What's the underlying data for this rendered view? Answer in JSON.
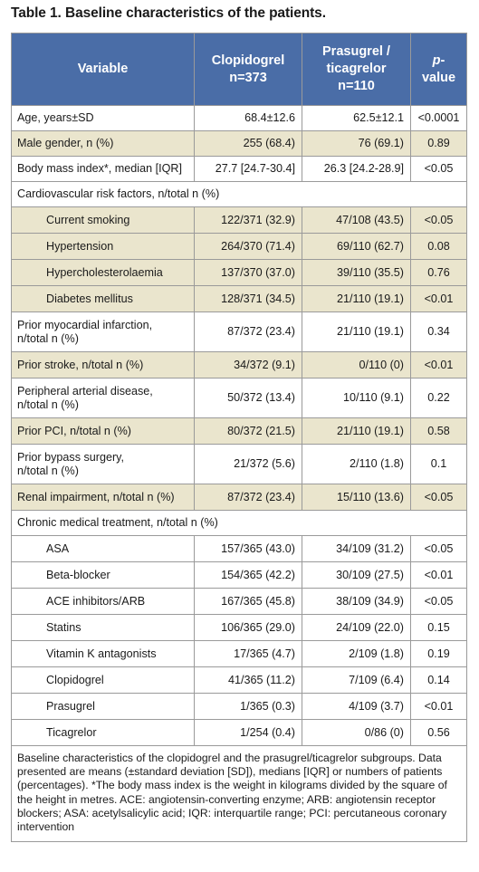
{
  "title": "Table 1. Baseline characteristics of the patients.",
  "header": {
    "variable": "Variable",
    "clopidogrel": "Clopidogrel",
    "clopidogrel_n": "n=373",
    "pras_line1": "Prasugrel /",
    "pras_line2": "ticagrelor",
    "pras_n": "n=110",
    "p_italic": "p",
    "p_rest": "-value"
  },
  "rows": [
    {
      "label": "Age, years±SD",
      "clop": "68.4±12.6",
      "pras": "62.5±12.1",
      "p": "<0.0001"
    },
    {
      "label": "Male gender, n (%)",
      "clop": "255 (68.4)",
      "pras": "76 (69.1)",
      "p": "0.89"
    },
    {
      "label": "Body mass index*, median [IQR]",
      "clop": "27.7 [24.7-30.4]",
      "pras": "26.3 [24.2-28.9]",
      "p": "<0.05"
    },
    {
      "label": "Cardiovascular risk factors, n/total n (%)"
    },
    {
      "label": "Current smoking",
      "clop": "122/371 (32.9)",
      "pras": "47/108 (43.5)",
      "p": "<0.05"
    },
    {
      "label": "Hypertension",
      "clop": "264/370 (71.4)",
      "pras": "69/110 (62.7)",
      "p": "0.08"
    },
    {
      "label": "Hypercholesterolaemia",
      "clop": "137/370 (37.0)",
      "pras": "39/110 (35.5)",
      "p": "0.76"
    },
    {
      "label": "Diabetes mellitus",
      "clop": "128/371 (34.5)",
      "pras": "21/110 (19.1)",
      "p": "<0.01"
    },
    {
      "label": "Prior myocardial infarction,",
      "label2": "n/total n (%)",
      "clop": "87/372 (23.4)",
      "pras": "21/110 (19.1)",
      "p": "0.34"
    },
    {
      "label": "Prior stroke, n/total n (%)",
      "clop": "34/372 (9.1)",
      "pras": "0/110 (0)",
      "p": "<0.01"
    },
    {
      "label": "Peripheral arterial disease,",
      "label2": "n/total n (%)",
      "clop": "50/372 (13.4)",
      "pras": "10/110 (9.1)",
      "p": "0.22"
    },
    {
      "label": "Prior PCI, n/total n (%)",
      "clop": "80/372 (21.5)",
      "pras": "21/110 (19.1)",
      "p": "0.58"
    },
    {
      "label": "Prior bypass surgery,",
      "label2": "n/total n (%)",
      "clop": "21/372 (5.6)",
      "pras": "2/110 (1.8)",
      "p": "0.1"
    },
    {
      "label": "Renal impairment, n/total n (%)",
      "clop": "87/372 (23.4)",
      "pras": "15/110 (13.6)",
      "p": "<0.05"
    },
    {
      "label": "Chronic medical treatment, n/total n (%)"
    },
    {
      "label": "ASA",
      "clop": "157/365 (43.0)",
      "pras": "34/109 (31.2)",
      "p": "<0.05"
    },
    {
      "label": "Beta-blocker",
      "clop": "154/365 (42.2)",
      "pras": "30/109 (27.5)",
      "p": "<0.01"
    },
    {
      "label": "ACE inhibitors/ARB",
      "clop": "167/365 (45.8)",
      "pras": "38/109 (34.9)",
      "p": "<0.05"
    },
    {
      "label": "Statins",
      "clop": "106/365 (29.0)",
      "pras": "24/109 (22.0)",
      "p": "0.15"
    },
    {
      "label": "Vitamin K antagonists",
      "clop": "17/365 (4.7)",
      "pras": "2/109 (1.8)",
      "p": "0.19"
    },
    {
      "label": "Clopidogrel",
      "clop": "41/365 (11.2)",
      "pras": "7/109 (6.4)",
      "p": "0.14"
    },
    {
      "label": "Prasugrel",
      "clop": "1/365 (0.3)",
      "pras": "4/109 (3.7)",
      "p": "<0.01"
    },
    {
      "label": "Ticagrelor",
      "clop": "1/254 (0.4)",
      "pras": "0/86 (0)",
      "p": "0.56"
    }
  ],
  "footnote": "Baseline characteristics of the clopidogrel and the prasugrel/ticagrelor subgroups. Data presented are means (±standard deviation [SD]), medians [IQR] or numbers of patients (percentages). *The body mass index is the weight in kilograms divided by the square of the height in metres. ACE: angiotensin-converting enzyme; ARB: angiotensin receptor blockers; ASA: acetylsalicylic acid; IQR: interquartile range; PCI: percutaneous coronary intervention",
  "colors": {
    "header_bg": "#4a6da7",
    "tan_row": "#eae5cd",
    "border": "#9a9a9a"
  }
}
